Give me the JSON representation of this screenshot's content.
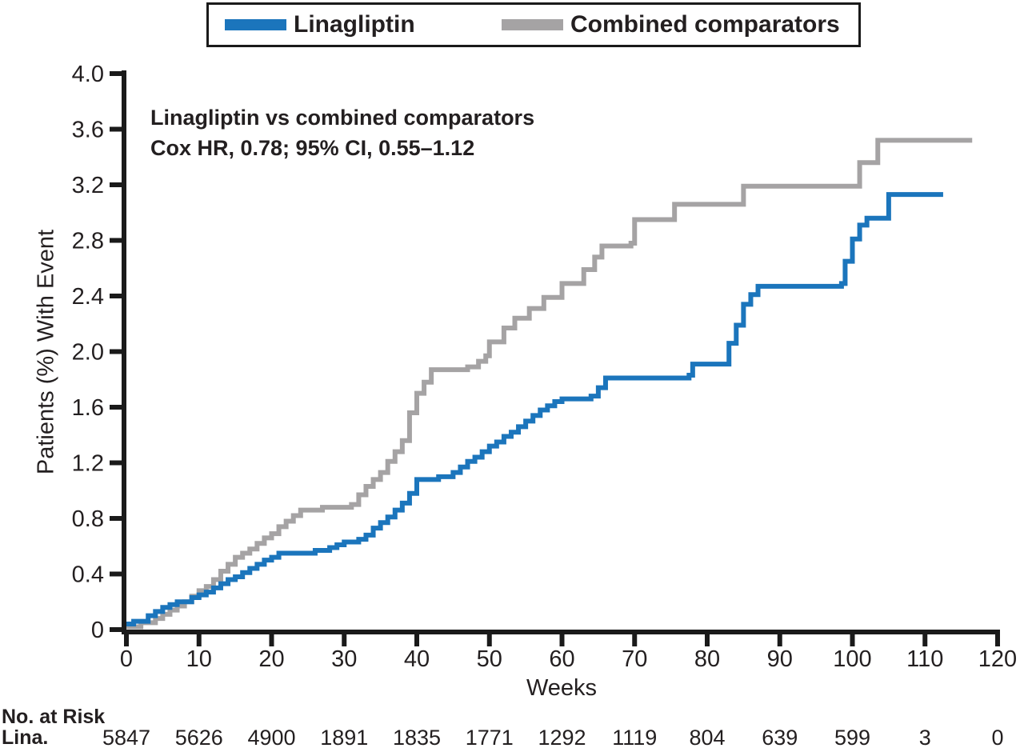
{
  "colors": {
    "linagliptin_blue": "#1b75bc",
    "comparator_gray": "#a5a3a4",
    "axis_black": "#1a1a1a",
    "text": "#231f20"
  },
  "legend": {
    "items": [
      {
        "label": "Linagliptin",
        "color": "#1b75bc"
      },
      {
        "label": "Combined comparators",
        "color": "#a5a3a4"
      }
    ]
  },
  "annotation": {
    "line1": "Linagliptin vs combined comparators",
    "line2": "Cox HR, 0.78; 95% CI, 0.55–1.12"
  },
  "chart_data": {
    "type": "line",
    "step": true,
    "title": "",
    "xlabel": "Weeks",
    "ylabel": "Patients (%) With Event",
    "xlim": [
      0,
      120
    ],
    "ylim": [
      0,
      4.0
    ],
    "grid": false,
    "legend_position": "top",
    "xticks": [
      0,
      10,
      20,
      30,
      40,
      50,
      60,
      70,
      80,
      90,
      100,
      110,
      120
    ],
    "xtick_labels": [
      "0",
      "10",
      "20",
      "30",
      "40",
      "50",
      "60",
      "70",
      "80",
      "90",
      "100",
      "110",
      "120"
    ],
    "yticks": [
      0,
      0.4,
      0.8,
      1.2,
      1.6,
      2.0,
      2.4,
      2.8,
      3.2,
      3.6,
      4.0
    ],
    "ytick_labels": [
      "0",
      "0.4",
      "0.8",
      "1.2",
      "1.6",
      "2.0",
      "2.4",
      "2.8",
      "3.2",
      "3.6",
      "4.0"
    ],
    "series": [
      {
        "name": "Combined comparators",
        "color": "#a5a3a4",
        "points": [
          [
            0,
            0.02
          ],
          [
            2,
            0.05
          ],
          [
            4,
            0.08
          ],
          [
            5,
            0.11
          ],
          [
            6,
            0.14
          ],
          [
            7,
            0.17
          ],
          [
            8,
            0.2
          ],
          [
            9,
            0.24
          ],
          [
            10,
            0.28
          ],
          [
            11,
            0.31
          ],
          [
            12,
            0.36
          ],
          [
            13,
            0.42
          ],
          [
            14,
            0.47
          ],
          [
            15,
            0.52
          ],
          [
            16,
            0.55
          ],
          [
            17,
            0.58
          ],
          [
            18,
            0.62
          ],
          [
            19,
            0.66
          ],
          [
            20,
            0.69
          ],
          [
            21,
            0.74
          ],
          [
            22,
            0.78
          ],
          [
            23,
            0.82
          ],
          [
            24,
            0.86
          ],
          [
            27,
            0.88
          ],
          [
            31,
            0.9
          ],
          [
            32,
            0.97
          ],
          [
            33,
            1.03
          ],
          [
            34,
            1.08
          ],
          [
            35,
            1.13
          ],
          [
            36,
            1.21
          ],
          [
            37,
            1.28
          ],
          [
            38,
            1.36
          ],
          [
            39,
            1.56
          ],
          [
            40,
            1.7
          ],
          [
            41,
            1.78
          ],
          [
            42,
            1.87
          ],
          [
            47,
            1.89
          ],
          [
            48.5,
            1.93
          ],
          [
            49.5,
            1.97
          ],
          [
            50,
            2.07
          ],
          [
            52,
            2.17
          ],
          [
            53.5,
            2.24
          ],
          [
            55.5,
            2.31
          ],
          [
            57.5,
            2.39
          ],
          [
            60,
            2.49
          ],
          [
            63,
            2.59
          ],
          [
            64.5,
            2.68
          ],
          [
            65.5,
            2.76
          ],
          [
            69.5,
            2.78
          ],
          [
            70,
            2.95
          ],
          [
            75.5,
            3.06
          ],
          [
            85,
            3.19
          ],
          [
            101,
            3.36
          ],
          [
            103.5,
            3.52
          ],
          [
            116.5,
            3.52
          ]
        ]
      },
      {
        "name": "Linagliptin",
        "color": "#1b75bc",
        "points": [
          [
            0,
            0.04
          ],
          [
            1,
            0.06
          ],
          [
            3,
            0.1
          ],
          [
            4,
            0.13
          ],
          [
            5,
            0.16
          ],
          [
            6,
            0.18
          ],
          [
            7,
            0.2
          ],
          [
            9,
            0.23
          ],
          [
            10,
            0.25
          ],
          [
            11,
            0.27
          ],
          [
            12,
            0.3
          ],
          [
            13,
            0.33
          ],
          [
            14,
            0.36
          ],
          [
            15,
            0.38
          ],
          [
            16,
            0.41
          ],
          [
            17,
            0.44
          ],
          [
            18,
            0.47
          ],
          [
            19,
            0.5
          ],
          [
            20,
            0.52
          ],
          [
            21,
            0.55
          ],
          [
            26,
            0.57
          ],
          [
            28,
            0.59
          ],
          [
            29,
            0.61
          ],
          [
            30,
            0.63
          ],
          [
            32,
            0.65
          ],
          [
            33,
            0.68
          ],
          [
            34,
            0.73
          ],
          [
            35,
            0.77
          ],
          [
            36,
            0.81
          ],
          [
            37,
            0.86
          ],
          [
            38,
            0.91
          ],
          [
            39,
            0.98
          ],
          [
            40,
            1.08
          ],
          [
            43,
            1.1
          ],
          [
            45,
            1.13
          ],
          [
            46,
            1.17
          ],
          [
            47,
            1.21
          ],
          [
            48,
            1.24
          ],
          [
            49,
            1.28
          ],
          [
            50,
            1.32
          ],
          [
            51,
            1.35
          ],
          [
            52,
            1.39
          ],
          [
            53,
            1.42
          ],
          [
            54,
            1.46
          ],
          [
            55,
            1.5
          ],
          [
            56,
            1.54
          ],
          [
            57,
            1.58
          ],
          [
            58,
            1.61
          ],
          [
            59,
            1.64
          ],
          [
            60,
            1.66
          ],
          [
            64,
            1.68
          ],
          [
            65,
            1.74
          ],
          [
            66,
            1.81
          ],
          [
            77.5,
            1.83
          ],
          [
            78,
            1.91
          ],
          [
            83,
            2.06
          ],
          [
            84,
            2.19
          ],
          [
            85,
            2.34
          ],
          [
            86,
            2.41
          ],
          [
            87,
            2.47
          ],
          [
            98.5,
            2.49
          ],
          [
            99,
            2.65
          ],
          [
            100,
            2.81
          ],
          [
            101,
            2.91
          ],
          [
            102,
            2.96
          ],
          [
            105,
            3.13
          ],
          [
            112.5,
            3.13
          ]
        ]
      }
    ]
  },
  "risk_table": {
    "title": "No. at Risk",
    "rows": [
      {
        "label": "Lina.",
        "values": [
          "5847",
          "5626",
          "4900",
          "1891",
          "1835",
          "1771",
          "1292",
          "1119",
          "804",
          "639",
          "599",
          "3",
          "0"
        ]
      }
    ]
  }
}
